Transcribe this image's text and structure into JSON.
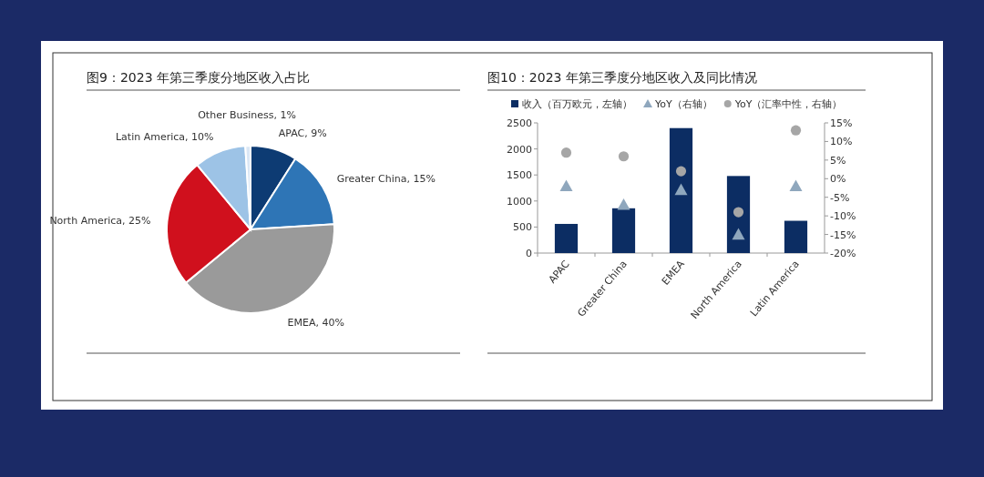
{
  "chart_data": [
    {
      "type": "pie",
      "title": "图9：2023 年第三季度分地区收入占比",
      "categories": [
        "APAC",
        "Greater China",
        "EMEA",
        "North America",
        "Latin America",
        "Other Business"
      ],
      "values": [
        9,
        15,
        40,
        25,
        10,
        1
      ],
      "value_labels": [
        "9%",
        "15%",
        "40%",
        "25%",
        "10%",
        "1%"
      ],
      "colors": [
        "#0d3b73",
        "#2e75b6",
        "#9a9a9a",
        "#d0101d",
        "#9dc3e6",
        "#dbe7f5"
      ]
    },
    {
      "type": "bar",
      "title": "图10：2023 年第三季度分地区收入及同比情况",
      "categories": [
        "APAC",
        "Greater China",
        "EMEA",
        "North America",
        "Latin America"
      ],
      "series": [
        {
          "name": "收入（百万欧元，左轴）",
          "type": "bar",
          "color": "#0c2d63",
          "values": [
            560,
            860,
            2400,
            1480,
            620
          ]
        },
        {
          "name": "YoY（右轴）",
          "type": "scatter",
          "axis": "y2",
          "marker": "triangle",
          "color": "#8fa7bd",
          "values": [
            -2,
            -7,
            -3,
            -15,
            -2
          ]
        },
        {
          "name": "YoY（汇率中性，右轴）",
          "type": "scatter",
          "axis": "y2",
          "marker": "circle",
          "color": "#a6a6a6",
          "values": [
            7,
            6,
            2,
            -9,
            13
          ]
        }
      ],
      "ylim": [
        0,
        2500
      ],
      "yticks": [
        0,
        500,
        1000,
        1500,
        2000,
        2500
      ],
      "y2lim": [
        -20,
        15
      ],
      "y2ticks": [
        {
          "value": -20,
          "label": "-20%"
        },
        {
          "value": -15,
          "label": "-15%"
        },
        {
          "value": -10,
          "label": "-10%"
        },
        {
          "value": -5,
          "label": "-5%"
        },
        {
          "value": 0,
          "label": "0%"
        },
        {
          "value": 5,
          "label": "5%"
        },
        {
          "value": 10,
          "label": "10%"
        },
        {
          "value": 15,
          "label": "15%"
        }
      ],
      "legend": "top",
      "grid": false
    }
  ]
}
